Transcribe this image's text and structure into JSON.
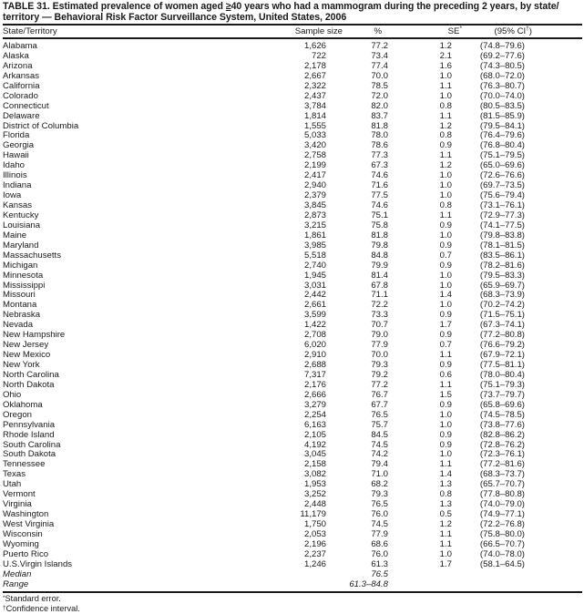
{
  "title": {
    "prefix": "TABLE 31. Estimated prevalence of women aged ",
    "ge": "≥",
    "suffix": "40 years who had a mammogram during the preceding 2 years, by state/ territory — Behavioral Risk Factor Surveillance System, United States, 2006"
  },
  "columns": {
    "state": "State/Territory",
    "sample_size": "Sample size",
    "pct": "%",
    "se": "SE",
    "se_mark": "*",
    "ci": "(95% CI",
    "ci_mark": "†",
    "ci_close": ")"
  },
  "rows": [
    {
      "state": "Alabama",
      "n": "1,626",
      "pct": "77.2",
      "se": "1.2",
      "ci": "(74.8–79.6)"
    },
    {
      "state": "Alaska",
      "n": "722",
      "pct": "73.4",
      "se": "2.1",
      "ci": "(69.2–77.6)"
    },
    {
      "state": "Arizona",
      "n": "2,178",
      "pct": "77.4",
      "se": "1.6",
      "ci": "(74.3–80.5)"
    },
    {
      "state": "Arkansas",
      "n": "2,667",
      "pct": "70.0",
      "se": "1.0",
      "ci": "(68.0–72.0)"
    },
    {
      "state": "California",
      "n": "2,322",
      "pct": "78.5",
      "se": "1.1",
      "ci": "(76.3–80.7)"
    },
    {
      "state": "Colorado",
      "n": "2,437",
      "pct": "72.0",
      "se": "1.0",
      "ci": "(70.0–74.0)"
    },
    {
      "state": "Connecticut",
      "n": "3,784",
      "pct": "82.0",
      "se": "0.8",
      "ci": "(80.5–83.5)"
    },
    {
      "state": "Delaware",
      "n": "1,814",
      "pct": "83.7",
      "se": "1.1",
      "ci": "(81.5–85.9)"
    },
    {
      "state": "District of Columbia",
      "n": "1,555",
      "pct": "81.8",
      "se": "1.2",
      "ci": "(79.5–84.1)"
    },
    {
      "state": "Florida",
      "n": "5,033",
      "pct": "78.0",
      "se": "0.8",
      "ci": "(76.4–79.6)"
    },
    {
      "state": "Georgia",
      "n": "3,420",
      "pct": "78.6",
      "se": "0.9",
      "ci": "(76.8–80.4)"
    },
    {
      "state": "Hawaii",
      "n": "2,758",
      "pct": "77.3",
      "se": "1.1",
      "ci": "(75.1–79.5)"
    },
    {
      "state": "Idaho",
      "n": "2,199",
      "pct": "67.3",
      "se": "1.2",
      "ci": "(65.0–69.6)"
    },
    {
      "state": "Illinois",
      "n": "2,417",
      "pct": "74.6",
      "se": "1.0",
      "ci": "(72.6–76.6)"
    },
    {
      "state": "Indiana",
      "n": "2,940",
      "pct": "71.6",
      "se": "1.0",
      "ci": "(69.7–73.5)"
    },
    {
      "state": "Iowa",
      "n": "2,379",
      "pct": "77.5",
      "se": "1.0",
      "ci": "(75.6–79.4)"
    },
    {
      "state": "Kansas",
      "n": "3,845",
      "pct": "74.6",
      "se": "0.8",
      "ci": "(73.1–76.1)"
    },
    {
      "state": "Kentucky",
      "n": "2,873",
      "pct": "75.1",
      "se": "1.1",
      "ci": "(72.9–77.3)"
    },
    {
      "state": "Louisiana",
      "n": "3,215",
      "pct": "75.8",
      "se": "0.9",
      "ci": "(74.1–77.5)"
    },
    {
      "state": "Maine",
      "n": "1,861",
      "pct": "81.8",
      "se": "1.0",
      "ci": "(79.8–83.8)"
    },
    {
      "state": "Maryland",
      "n": "3,985",
      "pct": "79.8",
      "se": "0.9",
      "ci": "(78.1–81.5)"
    },
    {
      "state": "Massachusetts",
      "n": "5,518",
      "pct": "84.8",
      "se": "0.7",
      "ci": "(83.5–86.1)"
    },
    {
      "state": "Michigan",
      "n": "2,740",
      "pct": "79.9",
      "se": "0.9",
      "ci": "(78.2–81.6)"
    },
    {
      "state": "Minnesota",
      "n": "1,945",
      "pct": "81.4",
      "se": "1.0",
      "ci": "(79.5–83.3)"
    },
    {
      "state": "Mississippi",
      "n": "3,031",
      "pct": "67.8",
      "se": "1.0",
      "ci": "(65.9–69.7)"
    },
    {
      "state": "Missouri",
      "n": "2,442",
      "pct": "71.1",
      "se": "1.4",
      "ci": "(68.3–73.9)"
    },
    {
      "state": "Montana",
      "n": "2,661",
      "pct": "72.2",
      "se": "1.0",
      "ci": "(70.2–74.2)"
    },
    {
      "state": "Nebraska",
      "n": "3,599",
      "pct": "73.3",
      "se": "0.9",
      "ci": "(71.5–75.1)"
    },
    {
      "state": "Nevada",
      "n": "1,422",
      "pct": "70.7",
      "se": "1.7",
      "ci": "(67.3–74.1)"
    },
    {
      "state": "New Hampshire",
      "n": "2,708",
      "pct": "79.0",
      "se": "0.9",
      "ci": "(77.2–80.8)"
    },
    {
      "state": "New Jersey",
      "n": "6,020",
      "pct": "77.9",
      "se": "0.7",
      "ci": "(76.6–79.2)"
    },
    {
      "state": "New Mexico",
      "n": "2,910",
      "pct": "70.0",
      "se": "1.1",
      "ci": "(67.9–72.1)"
    },
    {
      "state": "New York",
      "n": "2,688",
      "pct": "79.3",
      "se": "0.9",
      "ci": "(77.5–81.1)"
    },
    {
      "state": "North Carolina",
      "n": "7,317",
      "pct": "79.2",
      "se": "0.6",
      "ci": "(78.0–80.4)"
    },
    {
      "state": "North Dakota",
      "n": "2,176",
      "pct": "77.2",
      "se": "1.1",
      "ci": "(75.1–79.3)"
    },
    {
      "state": "Ohio",
      "n": "2,666",
      "pct": "76.7",
      "se": "1.5",
      "ci": "(73.7–79.7)"
    },
    {
      "state": "Oklahoma",
      "n": "3,279",
      "pct": "67.7",
      "se": "0.9",
      "ci": "(65.8–69.6)"
    },
    {
      "state": "Oregon",
      "n": "2,254",
      "pct": "76.5",
      "se": "1.0",
      "ci": "(74.5–78.5)"
    },
    {
      "state": "Pennsylvania",
      "n": "6,163",
      "pct": "75.7",
      "se": "1.0",
      "ci": "(73.8–77.6)"
    },
    {
      "state": "Rhode Island",
      "n": "2,105",
      "pct": "84.5",
      "se": "0.9",
      "ci": "(82.8–86.2)"
    },
    {
      "state": "South Carolina",
      "n": "4,192",
      "pct": "74.5",
      "se": "0.9",
      "ci": "(72.8–76.2)"
    },
    {
      "state": "South Dakota",
      "n": "3,045",
      "pct": "74.2",
      "se": "1.0",
      "ci": "(72.3–76.1)"
    },
    {
      "state": "Tennessee",
      "n": "2,158",
      "pct": "79.4",
      "se": "1.1",
      "ci": "(77.2–81.6)"
    },
    {
      "state": "Texas",
      "n": "3,082",
      "pct": "71.0",
      "se": "1.4",
      "ci": "(68.3–73.7)"
    },
    {
      "state": "Utah",
      "n": "1,953",
      "pct": "68.2",
      "se": "1.3",
      "ci": "(65.7–70.7)"
    },
    {
      "state": "Vermont",
      "n": "3,252",
      "pct": "79.3",
      "se": "0.8",
      "ci": "(77.8–80.8)"
    },
    {
      "state": "Virginia",
      "n": "2,448",
      "pct": "76.5",
      "se": "1.3",
      "ci": "(74.0–79.0)"
    },
    {
      "state": "Washington",
      "n": "11,179",
      "pct": "76.0",
      "se": "0.5",
      "ci": "(74.9–77.1)"
    },
    {
      "state": "West Virginia",
      "n": "1,750",
      "pct": "74.5",
      "se": "1.2",
      "ci": "(72.2–76.8)"
    },
    {
      "state": "Wisconsin",
      "n": "2,053",
      "pct": "77.9",
      "se": "1.1",
      "ci": "(75.8–80.0)"
    },
    {
      "state": "Wyoming",
      "n": "2,196",
      "pct": "68.6",
      "se": "1.1",
      "ci": "(66.5–70.7)"
    },
    {
      "state": "Puerto Rico",
      "n": "2,237",
      "pct": "76.0",
      "se": "1.0",
      "ci": "(74.0–78.0)"
    },
    {
      "state": "U.S.Virgin Islands",
      "n": "1,246",
      "pct": "61.3",
      "se": "1.7",
      "ci": "(58.1–64.5)"
    }
  ],
  "summary": {
    "median_label": "Median",
    "median_value": "76.5",
    "range_label": "Range",
    "range_value": "61.3–84.8"
  },
  "footnotes": {
    "se_mark": "*",
    "se_text": "Standard error.",
    "ci_mark": "†",
    "ci_text": "Confidence interval."
  }
}
